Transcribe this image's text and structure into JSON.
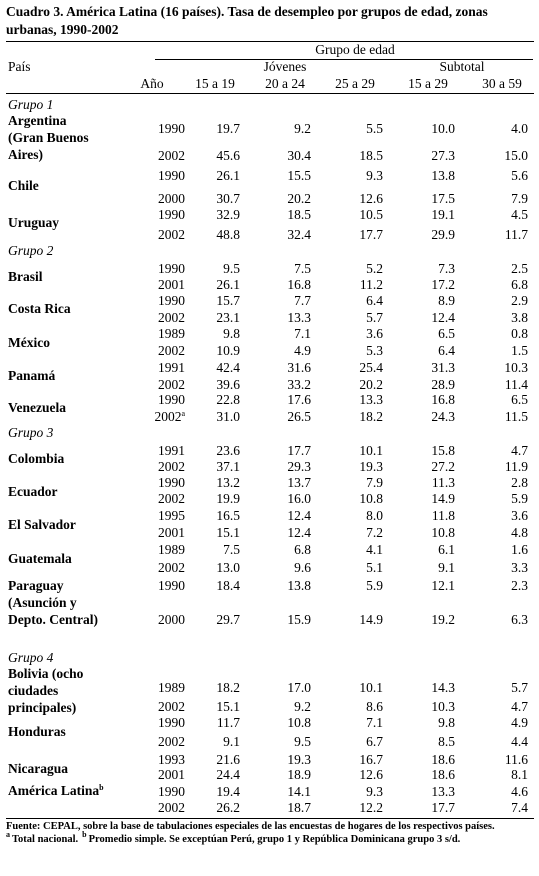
{
  "header": {
    "title": "Cuadro 3. América Latina (16 países). Tasa de desempleo por grupos de edad, zonas urbanas, 1990-2002"
  },
  "table": {
    "header": {
      "group": "Grupo de edad",
      "country": "País",
      "subgroups": [
        "Jóvenes",
        "Subtotal"
      ],
      "columns": [
        "Año",
        "15 a 19",
        "20 a 24",
        "25 a 29",
        "15 a 29",
        "30 a 59"
      ]
    },
    "groups": [
      {
        "label": "Grupo 1",
        "countries": [
          {
            "name": "Argentina (Gran Buenos Aires)",
            "rows": [
              {
                "year": "1990",
                "values": [
                  "19.7",
                  "9.2",
                  "5.5",
                  "10.0",
                  "4.0"
                ]
              },
              {
                "year": "2002",
                "values": [
                  "45.6",
                  "30.4",
                  "18.5",
                  "27.3",
                  "15.0"
                ]
              }
            ]
          },
          {
            "name": "Chile",
            "rows": [
              {
                "year": "1990",
                "values": [
                  "26.1",
                  "15.5",
                  "9.3",
                  "13.8",
                  "5.6"
                ]
              },
              {
                "year": "2000",
                "values": [
                  "30.7",
                  "20.2",
                  "12.6",
                  "17.5",
                  "7.9"
                ]
              }
            ]
          },
          {
            "name": "Uruguay",
            "rows": [
              {
                "year": "1990",
                "values": [
                  "32.9",
                  "18.5",
                  "10.5",
                  "19.1",
                  "4.5"
                ]
              },
              {
                "year": "2002",
                "values": [
                  "48.8",
                  "32.4",
                  "17.7",
                  "29.9",
                  "11.7"
                ]
              }
            ]
          }
        ]
      },
      {
        "label": "Grupo 2",
        "countries": [
          {
            "name": "Brasil",
            "rows": [
              {
                "year": "1990",
                "values": [
                  "9.5",
                  "7.5",
                  "5.2",
                  "7.3",
                  "2.5"
                ]
              },
              {
                "year": "2001",
                "values": [
                  "26.1",
                  "16.8",
                  "11.2",
                  "17.2",
                  "6.8"
                ]
              }
            ]
          },
          {
            "name": "Costa Rica",
            "rows": [
              {
                "year": "1990",
                "values": [
                  "15.7",
                  "7.7",
                  "6.4",
                  "8.9",
                  "2.9"
                ]
              },
              {
                "year": "2002",
                "values": [
                  "23.1",
                  "13.3",
                  "5.7",
                  "12.4",
                  "3.8"
                ]
              }
            ]
          },
          {
            "name": "México",
            "rows": [
              {
                "year": "1989",
                "values": [
                  "9.8",
                  "7.1",
                  "3.6",
                  "6.5",
                  "0.8"
                ]
              },
              {
                "year": "2002",
                "values": [
                  "10.9",
                  "4.9",
                  "5.3",
                  "6.4",
                  "1.5"
                ]
              }
            ]
          },
          {
            "name": "Panamá",
            "rows": [
              {
                "year": "1991",
                "values": [
                  "42.4",
                  "31.6",
                  "25.4",
                  "31.3",
                  "10.3"
                ]
              },
              {
                "year": "2002",
                "values": [
                  "39.6",
                  "33.2",
                  "20.2",
                  "28.9",
                  "11.4"
                ]
              }
            ]
          },
          {
            "name": "Venezuela",
            "rows": [
              {
                "year": "1990",
                "values": [
                  "22.8",
                  "17.6",
                  "13.3",
                  "16.8",
                  "6.5"
                ]
              },
              {
                "year": "2002",
                "note": "a",
                "values": [
                  "31.0",
                  "26.5",
                  "18.2",
                  "24.3",
                  "11.5"
                ]
              }
            ]
          }
        ]
      },
      {
        "label": "Grupo 3",
        "countries": [
          {
            "name": "Colombia",
            "rows": [
              {
                "year": "1991",
                "values": [
                  "23.6",
                  "17.7",
                  "10.1",
                  "15.8",
                  "4.7"
                ]
              },
              {
                "year": "2002",
                "values": [
                  "37.1",
                  "29.3",
                  "19.3",
                  "27.2",
                  "11.9"
                ]
              }
            ]
          },
          {
            "name": "Ecuador",
            "rows": [
              {
                "year": "1990",
                "values": [
                  "13.2",
                  "13.7",
                  "7.9",
                  "11.3",
                  "2.8"
                ]
              },
              {
                "year": "2002",
                "values": [
                  "19.9",
                  "16.0",
                  "10.8",
                  "14.9",
                  "5.9"
                ]
              }
            ]
          },
          {
            "name": "El Salvador",
            "rows": [
              {
                "year": "1995",
                "values": [
                  "16.5",
                  "12.4",
                  "8.0",
                  "11.8",
                  "3.6"
                ]
              },
              {
                "year": "2001",
                "values": [
                  "15.1",
                  "12.4",
                  "7.2",
                  "10.8",
                  "4.8"
                ]
              }
            ]
          },
          {
            "name": "Guatemala",
            "rows": [
              {
                "year": "1989",
                "values": [
                  "7.5",
                  "6.8",
                  "4.1",
                  "6.1",
                  "1.6"
                ]
              },
              {
                "year": "2002",
                "values": [
                  "13.0",
                  "9.6",
                  "5.1",
                  "9.1",
                  "3.3"
                ]
              }
            ]
          },
          {
            "name": "Paraguay (Asunción y Depto. Central)",
            "rows": [
              {
                "year": "1990",
                "values": [
                  "18.4",
                  "13.8",
                  "5.9",
                  "12.1",
                  "2.3"
                ]
              },
              {
                "year": "2000",
                "values": [
                  "29.7",
                  "15.9",
                  "14.9",
                  "19.2",
                  "6.3"
                ]
              }
            ]
          }
        ]
      },
      {
        "label": "Grupo 4",
        "countries": [
          {
            "name": "Bolivia (ocho ciudades principales)",
            "rows": [
              {
                "year": "1989",
                "values": [
                  "18.2",
                  "17.0",
                  "10.1",
                  "14.3",
                  "5.7"
                ]
              },
              {
                "year": "2002",
                "values": [
                  "15.1",
                  "9.2",
                  "8.6",
                  "10.3",
                  "4.7"
                ]
              }
            ]
          },
          {
            "name": "Honduras",
            "rows": [
              {
                "year": "1990",
                "values": [
                  "11.7",
                  "10.8",
                  "7.1",
                  "9.8",
                  "4.9"
                ]
              },
              {
                "year": "2002",
                "values": [
                  "9.1",
                  "9.5",
                  "6.7",
                  "8.5",
                  "4.4"
                ]
              }
            ]
          },
          {
            "name": "Nicaragua",
            "rows": [
              {
                "year": "1993",
                "values": [
                  "21.6",
                  "19.3",
                  "16.7",
                  "18.6",
                  "11.6"
                ]
              },
              {
                "year": "2001",
                "values": [
                  "24.4",
                  "18.9",
                  "12.6",
                  "18.6",
                  "8.1"
                ]
              }
            ]
          },
          {
            "name": "América Latina",
            "note": "b",
            "rows": [
              {
                "year": "1990",
                "values": [
                  "19.4",
                  "14.1",
                  "9.3",
                  "13.3",
                  "4.6"
                ]
              },
              {
                "year": "2002",
                "values": [
                  "26.2",
                  "18.7",
                  "12.2",
                  "17.7",
                  "7.4"
                ]
              }
            ]
          }
        ]
      }
    ]
  },
  "notes": {
    "source": "Fuente: CEPAL, sobre la base de tabulaciones especiales de las encuestas de hogares de los respectivos países.",
    "footnotes": [
      {
        "mark": "a",
        "text": "Total nacional."
      },
      {
        "mark": "b",
        "text": "Promedio simple. Se exceptúan Perú, grupo 1 y República Dominicana grupo 3 s/d."
      }
    ]
  }
}
